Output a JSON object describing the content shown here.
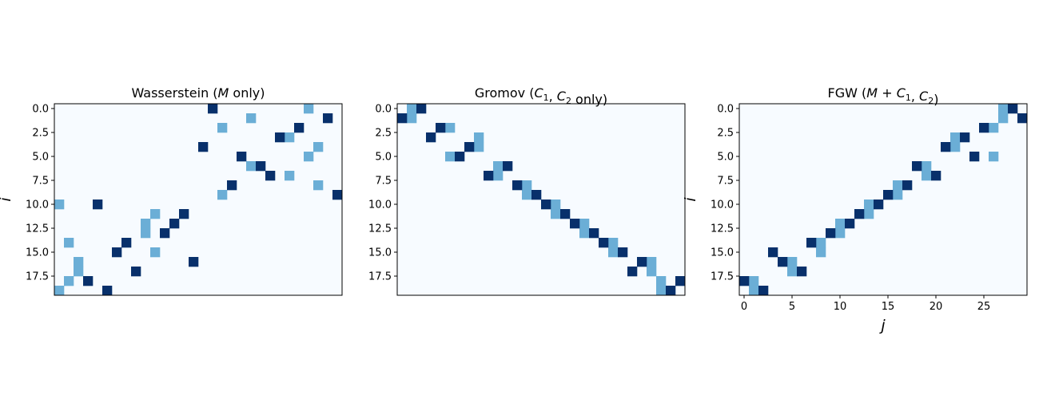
{
  "colors": {
    "background": "#f7fbff",
    "mid": "#6baed6",
    "dark": "#08306b",
    "frame": "#000000"
  },
  "chart_data": [
    {
      "type": "heatmap",
      "title": "Wasserstein (M only)",
      "title_parts": [
        "Wasserstein (",
        "M",
        " only)"
      ],
      "rows": 20,
      "cols": 30,
      "ylabel": "i",
      "xlabel": "",
      "yticks": [
        "0.0",
        "2.5",
        "5.0",
        "7.5",
        "10.0",
        "12.5",
        "15.0",
        "17.5"
      ],
      "ytick_values": [
        0,
        2.5,
        5,
        7.5,
        10,
        12.5,
        15,
        17.5
      ],
      "xticks": [],
      "xtick_values": [],
      "cells": {
        "dark": [
          [
            0,
            16
          ],
          [
            1,
            28
          ],
          [
            2,
            25
          ],
          [
            3,
            23
          ],
          [
            4,
            15
          ],
          [
            5,
            19
          ],
          [
            6,
            21
          ],
          [
            7,
            22
          ],
          [
            8,
            18
          ],
          [
            9,
            29
          ],
          [
            10,
            4
          ],
          [
            11,
            13
          ],
          [
            12,
            12
          ],
          [
            13,
            11
          ],
          [
            14,
            7
          ],
          [
            15,
            6
          ],
          [
            16,
            14
          ],
          [
            17,
            8
          ],
          [
            18,
            3
          ],
          [
            19,
            5
          ]
        ],
        "mid": [
          [
            0,
            26
          ],
          [
            1,
            20
          ],
          [
            2,
            17
          ],
          [
            3,
            24
          ],
          [
            4,
            27
          ],
          [
            5,
            26
          ],
          [
            6,
            20
          ],
          [
            7,
            24
          ],
          [
            8,
            27
          ],
          [
            9,
            17
          ],
          [
            10,
            0
          ],
          [
            11,
            10
          ],
          [
            12,
            9
          ],
          [
            13,
            9
          ],
          [
            14,
            1
          ],
          [
            15,
            10
          ],
          [
            16,
            2
          ],
          [
            17,
            2
          ],
          [
            18,
            1
          ],
          [
            19,
            0
          ]
        ]
      }
    },
    {
      "type": "heatmap",
      "title": "Gromov (C1, C2 only)",
      "title_parts": [
        "Gromov (",
        "C",
        "1",
        ", ",
        "C",
        "2",
        " only)"
      ],
      "rows": 20,
      "cols": 30,
      "ylabel": "",
      "xlabel": "",
      "yticks": [
        "0.0",
        "2.5",
        "5.0",
        "7.5",
        "10.0",
        "12.5",
        "15.0",
        "17.5"
      ],
      "ytick_values": [
        0,
        2.5,
        5,
        7.5,
        10,
        12.5,
        15,
        17.5
      ],
      "xticks": [],
      "xtick_values": [],
      "cells": {
        "dark": [
          [
            0,
            2
          ],
          [
            1,
            0
          ],
          [
            2,
            4
          ],
          [
            3,
            3
          ],
          [
            4,
            7
          ],
          [
            5,
            6
          ],
          [
            6,
            11
          ],
          [
            7,
            9
          ],
          [
            8,
            12
          ],
          [
            9,
            14
          ],
          [
            10,
            15
          ],
          [
            11,
            17
          ],
          [
            12,
            18
          ],
          [
            13,
            20
          ],
          [
            14,
            21
          ],
          [
            15,
            23
          ],
          [
            16,
            25
          ],
          [
            17,
            24
          ],
          [
            18,
            29
          ],
          [
            19,
            28
          ]
        ],
        "mid": [
          [
            0,
            1
          ],
          [
            1,
            1
          ],
          [
            2,
            5
          ],
          [
            3,
            8
          ],
          [
            4,
            8
          ],
          [
            5,
            5
          ],
          [
            6,
            10
          ],
          [
            7,
            10
          ],
          [
            8,
            13
          ],
          [
            9,
            13
          ],
          [
            10,
            16
          ],
          [
            11,
            16
          ],
          [
            12,
            19
          ],
          [
            13,
            19
          ],
          [
            14,
            22
          ],
          [
            15,
            22
          ],
          [
            16,
            26
          ],
          [
            17,
            26
          ],
          [
            18,
            27
          ],
          [
            19,
            27
          ]
        ]
      }
    },
    {
      "type": "heatmap",
      "title": "FGW  (M + C1, C2)",
      "title_parts": [
        "FGW  (",
        "M",
        " + ",
        "C",
        "1",
        ", ",
        "C",
        "2",
        ")"
      ],
      "rows": 20,
      "cols": 30,
      "ylabel": "i",
      "xlabel": "j",
      "yticks": [
        "0.0",
        "2.5",
        "5.0",
        "7.5",
        "10.0",
        "12.5",
        "15.0",
        "17.5"
      ],
      "ytick_values": [
        0,
        2.5,
        5,
        7.5,
        10,
        12.5,
        15,
        17.5
      ],
      "xticks": [
        "0",
        "5",
        "10",
        "15",
        "20",
        "25"
      ],
      "xtick_values": [
        0,
        5,
        10,
        15,
        20,
        25
      ],
      "cells": {
        "dark": [
          [
            0,
            28
          ],
          [
            1,
            29
          ],
          [
            2,
            25
          ],
          [
            3,
            23
          ],
          [
            4,
            21
          ],
          [
            5,
            24
          ],
          [
            6,
            18
          ],
          [
            7,
            20
          ],
          [
            8,
            17
          ],
          [
            9,
            15
          ],
          [
            10,
            14
          ],
          [
            11,
            12
          ],
          [
            12,
            11
          ],
          [
            13,
            9
          ],
          [
            14,
            7
          ],
          [
            15,
            3
          ],
          [
            16,
            4
          ],
          [
            17,
            6
          ],
          [
            18,
            0
          ],
          [
            19,
            2
          ]
        ],
        "mid": [
          [
            0,
            27
          ],
          [
            1,
            27
          ],
          [
            2,
            26
          ],
          [
            3,
            22
          ],
          [
            4,
            22
          ],
          [
            5,
            26
          ],
          [
            6,
            19
          ],
          [
            7,
            19
          ],
          [
            8,
            16
          ],
          [
            9,
            16
          ],
          [
            10,
            13
          ],
          [
            11,
            13
          ],
          [
            12,
            10
          ],
          [
            13,
            10
          ],
          [
            14,
            8
          ],
          [
            15,
            8
          ],
          [
            16,
            5
          ],
          [
            17,
            5
          ],
          [
            18,
            1
          ],
          [
            19,
            1
          ]
        ]
      }
    }
  ]
}
